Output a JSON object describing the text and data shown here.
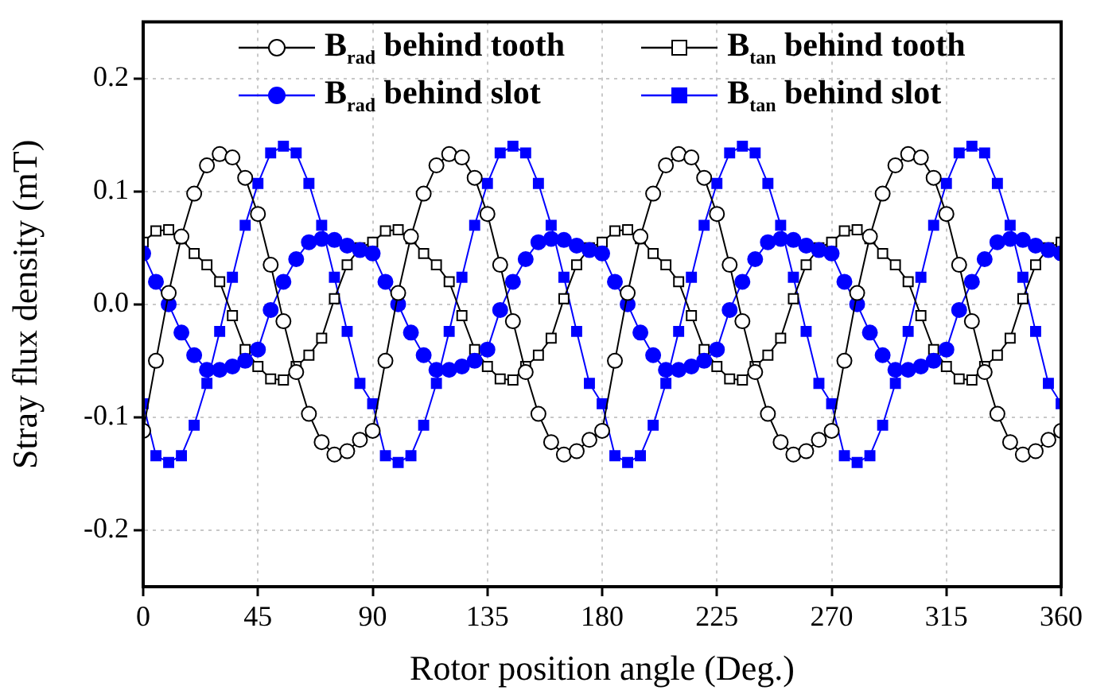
{
  "chart_data": {
    "type": "line",
    "xlabel": "Rotor position angle (Deg.)",
    "ylabel": "Stray flux density (mT)",
    "x": [
      0,
      5,
      10,
      15,
      20,
      25,
      30,
      35,
      40,
      45,
      50,
      55,
      60,
      65,
      70,
      75,
      80,
      85,
      90,
      95,
      100,
      105,
      110,
      115,
      120,
      125,
      130,
      135,
      140,
      145,
      150,
      155,
      160,
      165,
      170,
      175,
      180,
      185,
      190,
      195,
      200,
      205,
      210,
      215,
      220,
      225,
      230,
      235,
      240,
      245,
      250,
      255,
      260,
      265,
      270,
      275,
      280,
      285,
      290,
      295,
      300,
      305,
      310,
      315,
      320,
      325,
      330,
      335,
      340,
      345,
      350,
      355,
      360
    ],
    "xlim": [
      0,
      360
    ],
    "xticks": [
      0,
      45,
      90,
      135,
      180,
      225,
      270,
      315,
      360
    ],
    "ylim": [
      -0.25,
      0.25
    ],
    "yticks": [
      {
        "value": -0.2,
        "label": "-0.2"
      },
      {
        "value": -0.1,
        "label": "-0.1"
      },
      {
        "value": 0,
        "label": "0.0"
      },
      {
        "value": 0.1,
        "label": "0.1"
      },
      {
        "value": 0.2,
        "label": "0.2"
      }
    ],
    "grid": true,
    "legend": "top",
    "line_style": "solid",
    "series": [
      {
        "name": "B$_{rad}$ behind tooth",
        "color": "#000000",
        "marker": "circle",
        "values": [
          -0.112,
          -0.05,
          0.01,
          0.06,
          0.098,
          0.123,
          0.133,
          0.13,
          0.112,
          0.08,
          0.035,
          -0.015,
          -0.06,
          -0.097,
          -0.122,
          -0.133,
          -0.13,
          -0.12,
          -0.112,
          -0.05,
          0.01,
          0.06,
          0.098,
          0.123,
          0.133,
          0.13,
          0.112,
          0.08,
          0.035,
          -0.015,
          -0.06,
          -0.097,
          -0.122,
          -0.133,
          -0.13,
          -0.12,
          -0.112,
          -0.05,
          0.01,
          0.06,
          0.098,
          0.123,
          0.133,
          0.13,
          0.112,
          0.08,
          0.035,
          -0.015,
          -0.06,
          -0.097,
          -0.122,
          -0.133,
          -0.13,
          -0.12,
          -0.112,
          -0.05,
          0.01,
          0.06,
          0.098,
          0.123,
          0.133,
          0.13,
          0.112,
          0.08,
          0.035,
          -0.015,
          -0.06,
          -0.097,
          -0.122,
          -0.133,
          -0.13,
          -0.12,
          -0.112
        ]
      },
      {
        "name": "B$_{rad}$ behind slot",
        "color": "#0000ff",
        "marker": "circle",
        "values": [
          0.045,
          0.02,
          0.0,
          -0.025,
          -0.045,
          -0.058,
          -0.058,
          -0.055,
          -0.05,
          -0.04,
          -0.005,
          0.02,
          0.04,
          0.055,
          0.058,
          0.057,
          0.052,
          0.048,
          0.045,
          0.02,
          0.0,
          -0.025,
          -0.045,
          -0.058,
          -0.058,
          -0.055,
          -0.05,
          -0.04,
          -0.005,
          0.02,
          0.04,
          0.055,
          0.058,
          0.057,
          0.052,
          0.048,
          0.045,
          0.02,
          0.0,
          -0.025,
          -0.045,
          -0.058,
          -0.058,
          -0.055,
          -0.05,
          -0.04,
          -0.005,
          0.02,
          0.04,
          0.055,
          0.058,
          0.057,
          0.052,
          0.048,
          0.045,
          0.02,
          0.0,
          -0.025,
          -0.045,
          -0.058,
          -0.058,
          -0.055,
          -0.05,
          -0.04,
          -0.005,
          0.02,
          0.04,
          0.055,
          0.058,
          0.057,
          0.052,
          0.048,
          0.045
        ]
      },
      {
        "name": "B$_{tan}$ behind tooth",
        "color": "#000000",
        "marker": "square",
        "values": [
          0.055,
          0.065,
          0.066,
          0.058,
          0.045,
          0.035,
          0.02,
          -0.01,
          -0.04,
          -0.055,
          -0.066,
          -0.067,
          -0.055,
          -0.045,
          -0.03,
          0.005,
          0.035,
          0.05,
          0.055,
          0.065,
          0.066,
          0.058,
          0.045,
          0.035,
          0.02,
          -0.01,
          -0.04,
          -0.055,
          -0.066,
          -0.067,
          -0.055,
          -0.045,
          -0.03,
          0.005,
          0.035,
          0.05,
          0.055,
          0.065,
          0.066,
          0.058,
          0.045,
          0.035,
          0.02,
          -0.01,
          -0.04,
          -0.055,
          -0.066,
          -0.067,
          -0.055,
          -0.045,
          -0.03,
          0.005,
          0.035,
          0.05,
          0.055,
          0.065,
          0.066,
          0.058,
          0.045,
          0.035,
          0.02,
          -0.01,
          -0.04,
          -0.055,
          -0.066,
          -0.067,
          -0.055,
          -0.045,
          -0.03,
          0.005,
          0.035,
          0.05,
          0.055
        ]
      },
      {
        "name": "B$_{tan}$ behind slot",
        "color": "#0000ff",
        "marker": "square",
        "values": [
          -0.088,
          -0.134,
          -0.14,
          -0.134,
          -0.107,
          -0.07,
          -0.024,
          0.024,
          0.07,
          0.107,
          0.134,
          0.14,
          0.134,
          0.107,
          0.07,
          0.024,
          -0.024,
          -0.07,
          -0.088,
          -0.134,
          -0.14,
          -0.134,
          -0.107,
          -0.07,
          -0.024,
          0.024,
          0.07,
          0.107,
          0.134,
          0.14,
          0.134,
          0.107,
          0.07,
          0.024,
          -0.024,
          -0.07,
          -0.088,
          -0.134,
          -0.14,
          -0.134,
          -0.107,
          -0.07,
          -0.024,
          0.024,
          0.07,
          0.107,
          0.134,
          0.14,
          0.134,
          0.107,
          0.07,
          0.024,
          -0.024,
          -0.07,
          -0.088,
          -0.134,
          -0.14,
          -0.134,
          -0.107,
          -0.07,
          -0.024,
          0.024,
          0.07,
          0.107,
          0.134,
          0.14,
          0.134,
          0.107,
          0.07,
          0.024,
          -0.024,
          -0.07,
          -0.088
        ]
      }
    ]
  }
}
